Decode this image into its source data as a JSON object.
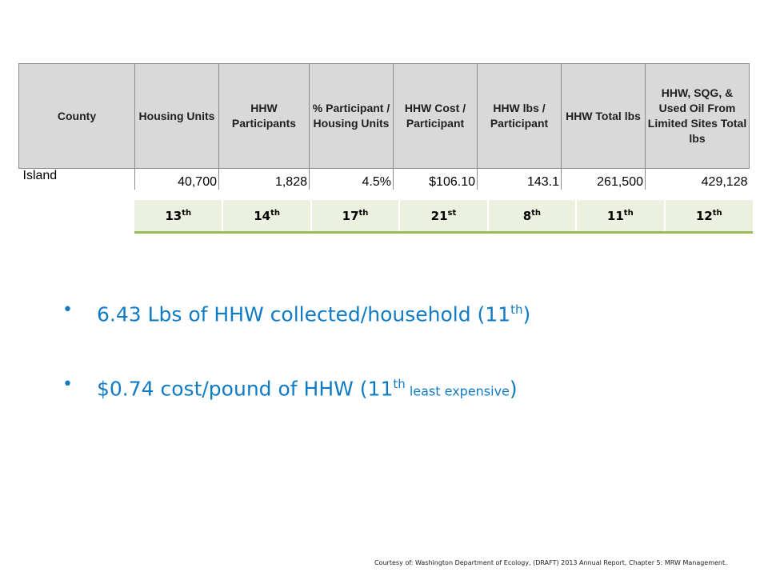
{
  "table": {
    "headers": [
      "County",
      "Housing Units",
      "HHW Participants",
      "% Participant / Housing Units",
      "HHW Cost / Participant",
      "HHW lbs / Participant",
      "HHW Total lbs",
      "HHW, SQG, & Used Oil From Limited Sites Total lbs"
    ],
    "row": [
      "Island",
      "40,700",
      "1,828",
      "4.5%",
      "$106.10",
      "143.1",
      "261,500",
      "429,128"
    ]
  },
  "ranks": [
    {
      "num": "13",
      "suffix": "th"
    },
    {
      "num": "14",
      "suffix": "th"
    },
    {
      "num": "17",
      "suffix": "th"
    },
    {
      "num": "21",
      "suffix": "st"
    },
    {
      "num": "8",
      "suffix": "th"
    },
    {
      "num": "11",
      "suffix": "th"
    },
    {
      "num": "12",
      "suffix": "th"
    }
  ],
  "bullets": {
    "b1": {
      "text": "6.43 Lbs of HHW collected/household  (11",
      "sup": "th",
      "tail": ")"
    },
    "b2": {
      "text": "$0.74 cost/pound of HHW (11",
      "sup": "th",
      "small": " least expensive",
      "tail": ")"
    }
  },
  "footer": "Courtesy of:  Washington Department of Ecology, (DRAFT) 2013 Annual Report, Chapter 5: MRW Management.",
  "colors": {
    "header_bg": "#d9d9d9",
    "rank_bg": "#ebf1de",
    "rank_border": "#9bbb59",
    "bullet_text": "#0f7bc4"
  }
}
